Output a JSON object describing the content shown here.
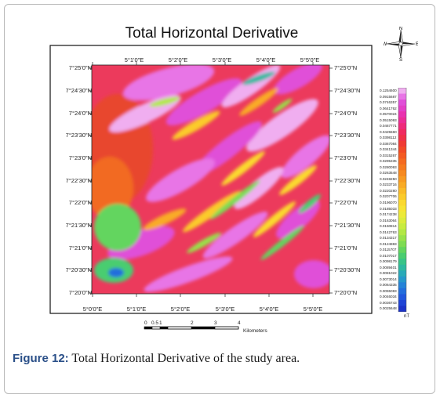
{
  "map": {
    "title": "Total Horizontal Derivative",
    "lat_labels": [
      "7°25'0\"N",
      "7°24'30\"N",
      "7°24'0\"N",
      "7°23'30\"N",
      "7°23'0\"N",
      "7°22'30\"N",
      "7°22'0\"N",
      "7°21'30\"N",
      "7°21'0\"N",
      "7°20'30\"N",
      "7°20'0\"N"
    ],
    "lon_labels_top": [
      "5°1'0\"E",
      "5°2'0\"E",
      "5°3'0\"E",
      "5°4'0\"E",
      "5°5'0\"E"
    ],
    "lon_labels_bottom": [
      "5°0'0\"E",
      "5°1'0\"E",
      "5°2'0\"E",
      "5°3'0\"E",
      "5°4'0\"E",
      "5°5'0\"E"
    ]
  },
  "compass": {
    "n": "N",
    "s": "S",
    "e": "E",
    "w": "W"
  },
  "legend": {
    "unit": "nT",
    "values": [
      "0.1254600",
      "0.0915687",
      "0.0746357",
      "0.0641762",
      "0.0570024",
      "0.0515093",
      "0.0467771",
      "0.0425560",
      "0.0398112",
      "0.0367084",
      "0.0341344",
      "0.0315267",
      "0.0295335",
      "0.0280093",
      "0.0263548",
      "0.0248250",
      "0.0233716",
      "0.0220280",
      "0.0207706",
      "0.0196070",
      "0.0185033",
      "0.0174238",
      "0.0163064",
      "0.0150814",
      "0.0142763",
      "0.0134317",
      "0.0124883",
      "0.0115707",
      "0.0107017",
      "0.0098179",
      "0.0089401",
      "0.0081022",
      "0.0073014",
      "0.0064335",
      "0.0055083",
      "0.0046034",
      "0.0036743",
      "0.0025648"
    ],
    "colors": [
      "#f0aef0",
      "#e874e6",
      "#e04fd8",
      "#e43fc7",
      "#e932b0",
      "#ec2d96",
      "#ee2a7b",
      "#f02a60",
      "#f03048",
      "#f03a34",
      "#f24a26",
      "#f45a22",
      "#f56a20",
      "#f67a1f",
      "#f78a20",
      "#f89b22",
      "#f9ab25",
      "#fabb28",
      "#fbcb2b",
      "#fbd92f",
      "#f7e433",
      "#ecea38",
      "#dcec3c",
      "#c8ec40",
      "#b2e844",
      "#98e24a",
      "#7edc52",
      "#63d55e",
      "#4acd70",
      "#38c487",
      "#2eb9a0",
      "#29aab8",
      "#2698cc",
      "#2583d8",
      "#236edd",
      "#2158dd",
      "#1f44d6",
      "#1c33c8"
    ]
  },
  "scalebar": {
    "ticks": [
      "0",
      "0.5",
      "1",
      "2",
      "3",
      "4"
    ],
    "unit": "Kilometers"
  },
  "caption": {
    "label": "Figure 12:",
    "text": " Total Horizontal Derivative of the study area."
  }
}
